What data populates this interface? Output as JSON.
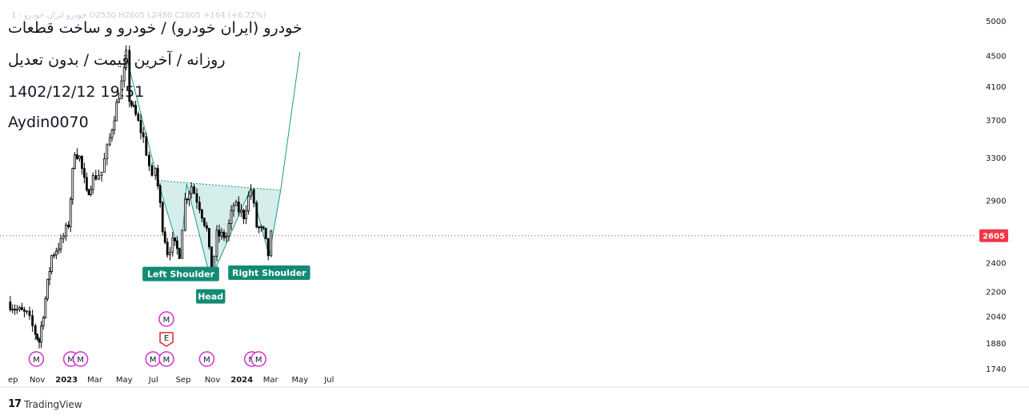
{
  "header": {
    "ohlc_line": "1 · خودرو ایران خودرو  O2530  H2605  L2480  C2605  +164 (+6.72%)",
    "symbol_title": "خودرو (ایران خودرو) / خودرو و ساخت قطعات",
    "subtitle": "روزانه / آخرین قیمت / بدون تعدیل",
    "timestamp": "1402/12/12 19:51",
    "author": "Aydin0070"
  },
  "footer": {
    "brand": "TradingView",
    "logo": "tradingview-logo"
  },
  "colors": {
    "candle": "#000000",
    "pattern_line": "#1e9c84",
    "pattern_fill": "#b2dfdb",
    "label_bg": "#138a74",
    "price_tag": "#f23645",
    "marker": "#d62bd6",
    "earnings": "#e0242f"
  },
  "chart_data": {
    "type": "candlestick",
    "title": "خودرو (ایران خودرو) / خودرو و ساخت قطعات",
    "interval": "روزانه",
    "y_scale": "log",
    "y_ticks": [
      5000,
      4500,
      4100,
      3700,
      3300,
      2900,
      2605,
      2400,
      2200,
      2040,
      1880,
      1740
    ],
    "x_ticks": [
      "ep",
      "Nov",
      "2023",
      "Mar",
      "May",
      "Jul",
      "Sep",
      "Nov",
      "2024",
      "Mar",
      "May",
      "Jul"
    ],
    "last_price": 2605,
    "last_price_label": "2605",
    "close_path": [
      {
        "date": "2022-09-01",
        "close": 2130
      },
      {
        "date": "2022-09-20",
        "close": 2080
      },
      {
        "date": "2022-10-10",
        "close": 2050
      },
      {
        "date": "2022-10-28",
        "close": 1940
      },
      {
        "date": "2022-11-05",
        "close": 1890
      },
      {
        "date": "2022-11-18",
        "close": 2150
      },
      {
        "date": "2022-12-01",
        "close": 2450
      },
      {
        "date": "2022-12-20",
        "close": 2550
      },
      {
        "date": "2023-01-05",
        "close": 2700
      },
      {
        "date": "2023-01-18",
        "close": 3380
      },
      {
        "date": "2023-01-28",
        "close": 3300
      },
      {
        "date": "2023-02-12",
        "close": 2950
      },
      {
        "date": "2023-02-25",
        "close": 3100
      },
      {
        "date": "2023-03-15",
        "close": 3160
      },
      {
        "date": "2023-04-01",
        "close": 3500
      },
      {
        "date": "2023-04-20",
        "close": 4000
      },
      {
        "date": "2023-05-01",
        "close": 4280
      },
      {
        "date": "2023-05-05",
        "close": 4500
      },
      {
        "date": "2023-05-12",
        "close": 3950
      },
      {
        "date": "2023-05-25",
        "close": 3750
      },
      {
        "date": "2023-06-10",
        "close": 3500
      },
      {
        "date": "2023-06-28",
        "close": 3080
      },
      {
        "date": "2023-07-05",
        "close": 3200
      },
      {
        "date": "2023-07-20",
        "close": 2680
      },
      {
        "date": "2023-07-30",
        "close": 2480
      },
      {
        "date": "2023-08-10",
        "close": 2550
      },
      {
        "date": "2023-08-24",
        "close": 2470
      },
      {
        "date": "2023-09-05",
        "close": 2900
      },
      {
        "date": "2023-09-18",
        "close": 3030
      },
      {
        "date": "2023-10-05",
        "close": 2850
      },
      {
        "date": "2023-10-20",
        "close": 2650
      },
      {
        "date": "2023-10-30",
        "close": 2300
      },
      {
        "date": "2023-11-10",
        "close": 2610
      },
      {
        "date": "2023-11-30",
        "close": 2600
      },
      {
        "date": "2023-12-15",
        "close": 2860
      },
      {
        "date": "2024-01-05",
        "close": 2770
      },
      {
        "date": "2024-01-20",
        "close": 3000
      },
      {
        "date": "2024-02-01",
        "close": 2680
      },
      {
        "date": "2024-02-15",
        "close": 2630
      },
      {
        "date": "2024-02-25",
        "close": 2460
      },
      {
        "date": "2024-03-02",
        "close": 2605
      }
    ],
    "pattern": {
      "name": "inverse head and shoulders",
      "points": [
        {
          "date": "2023-05-05",
          "price": 4500
        },
        {
          "date": "2023-07-10",
          "price": 3080
        },
        {
          "date": "2023-08-27",
          "price": 2440
        },
        {
          "date": "2023-09-08",
          "price": 3050
        },
        {
          "date": "2023-10-28",
          "price": 2280
        },
        {
          "date": "2024-01-20",
          "price": 3010
        },
        {
          "date": "2024-02-27",
          "price": 2450
        },
        {
          "date": "2024-03-22",
          "price": 2990
        },
        {
          "date": "2024-05-01",
          "price": 4550
        }
      ],
      "neckline": [
        {
          "date": "2023-07-10",
          "price": 3080
        },
        {
          "date": "2024-03-22",
          "price": 2990
        }
      ]
    },
    "annotations": [
      {
        "text": "Left Shoulder",
        "date": "2023-08-27",
        "price": 2440
      },
      {
        "text": "Head",
        "date": "2023-10-28",
        "price": 2280
      },
      {
        "text": "Right Shoulder",
        "date": "2024-02-27",
        "price": 2450
      }
    ],
    "event_markers": [
      {
        "date": "2022-10-30",
        "symbol": "M"
      },
      {
        "date": "2023-01-10",
        "symbol": "M"
      },
      {
        "date": "2023-01-30",
        "symbol": "M"
      },
      {
        "date": "2023-06-30",
        "symbol": "M"
      },
      {
        "date": "2023-07-28",
        "symbol": "M"
      },
      {
        "date": "2023-07-28",
        "symbol": "M",
        "row": 2
      },
      {
        "date": "2023-07-28",
        "symbol": "E",
        "row": 1
      },
      {
        "date": "2023-10-20",
        "symbol": "M"
      },
      {
        "date": "2024-01-22",
        "symbol": "M"
      },
      {
        "date": "2024-02-05",
        "symbol": "M"
      }
    ]
  }
}
